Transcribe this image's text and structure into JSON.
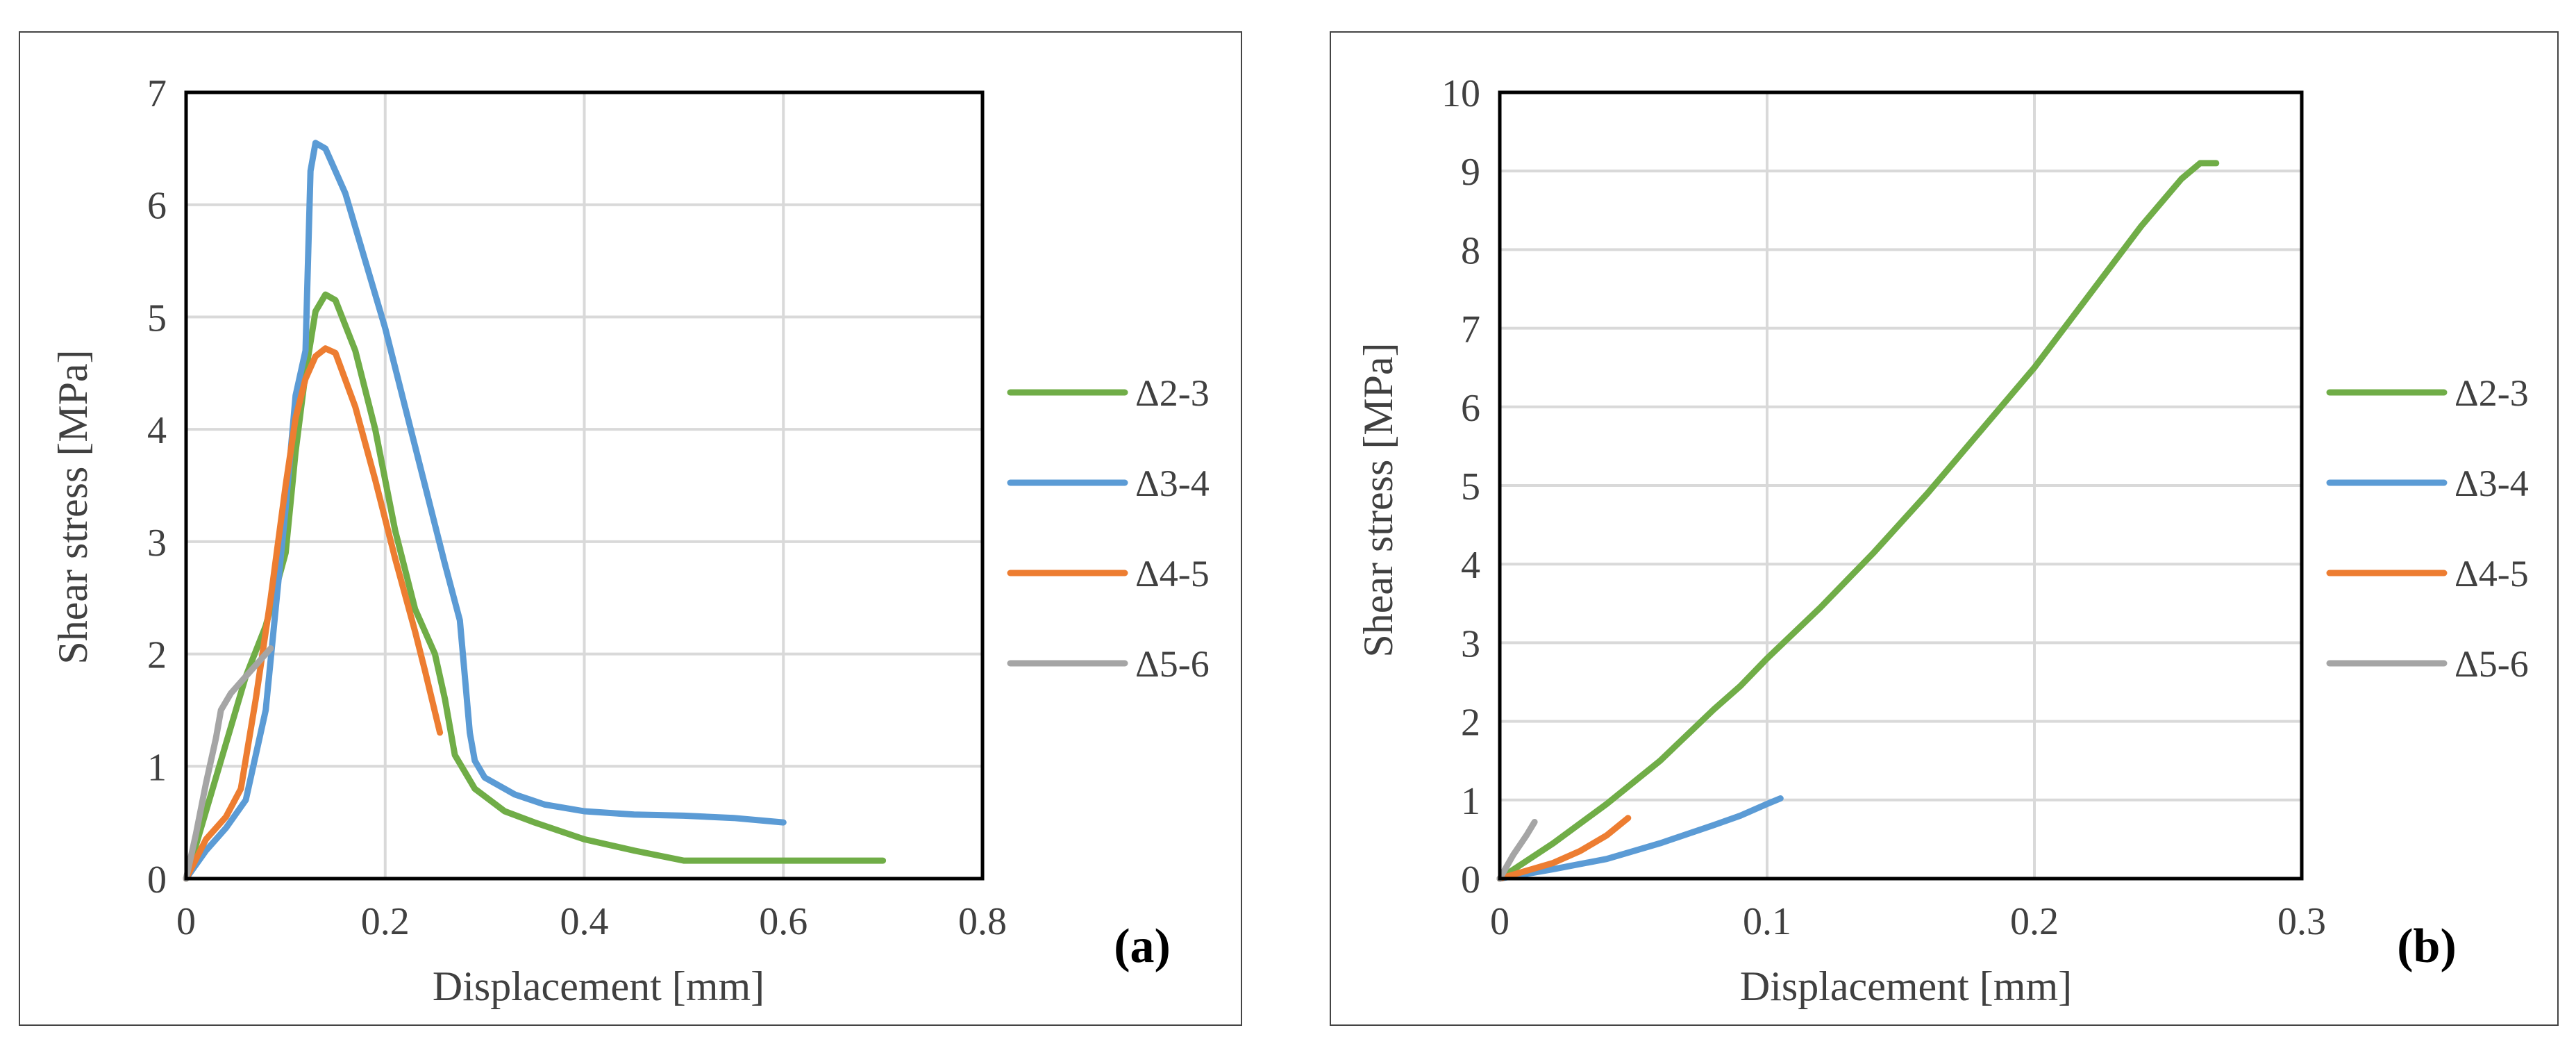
{
  "chart_data": [
    {
      "type": "line",
      "panel_label": "(a)",
      "xlabel": "Displacement [mm]",
      "ylabel": "Shear stress [MPa]",
      "xlim": [
        0,
        0.8
      ],
      "ylim": [
        0,
        7
      ],
      "xticks": [
        "0",
        "0.2",
        "0.4",
        "0.6",
        "0.8"
      ],
      "yticks": [
        "0",
        "1",
        "2",
        "3",
        "4",
        "5",
        "6",
        "7"
      ],
      "xtick_values": [
        0,
        0.2,
        0.4,
        0.6,
        0.8
      ],
      "ytick_values": [
        0,
        1,
        2,
        3,
        4,
        5,
        6,
        7
      ],
      "grid": true,
      "legend_position": "right",
      "series": [
        {
          "name": "Δ2-3",
          "color": "#70ad47",
          "points": [
            [
              0,
              0
            ],
            [
              0.03,
              0.9
            ],
            [
              0.06,
              1.8
            ],
            [
              0.08,
              2.25
            ],
            [
              0.1,
              2.9
            ],
            [
              0.11,
              3.8
            ],
            [
              0.12,
              4.5
            ],
            [
              0.13,
              5.05
            ],
            [
              0.14,
              5.2
            ],
            [
              0.15,
              5.15
            ],
            [
              0.17,
              4.7
            ],
            [
              0.19,
              4.0
            ],
            [
              0.21,
              3.1
            ],
            [
              0.23,
              2.4
            ],
            [
              0.25,
              2.0
            ],
            [
              0.26,
              1.6
            ],
            [
              0.27,
              1.1
            ],
            [
              0.29,
              0.8
            ],
            [
              0.32,
              0.6
            ],
            [
              0.35,
              0.5
            ],
            [
              0.4,
              0.35
            ],
            [
              0.45,
              0.25
            ],
            [
              0.5,
              0.16
            ],
            [
              0.6,
              0.16
            ],
            [
              0.7,
              0.16
            ]
          ]
        },
        {
          "name": "Δ3-4",
          "color": "#5b9bd5",
          "points": [
            [
              0,
              0
            ],
            [
              0.02,
              0.25
            ],
            [
              0.04,
              0.45
            ],
            [
              0.06,
              0.7
            ],
            [
              0.08,
              1.5
            ],
            [
              0.09,
              2.4
            ],
            [
              0.1,
              3.3
            ],
            [
              0.11,
              4.3
            ],
            [
              0.12,
              4.7
            ],
            [
              0.125,
              6.3
            ],
            [
              0.13,
              6.55
            ],
            [
              0.14,
              6.5
            ],
            [
              0.16,
              6.1
            ],
            [
              0.18,
              5.5
            ],
            [
              0.2,
              4.9
            ],
            [
              0.22,
              4.2
            ],
            [
              0.24,
              3.5
            ],
            [
              0.26,
              2.8
            ],
            [
              0.275,
              2.3
            ],
            [
              0.28,
              1.8
            ],
            [
              0.285,
              1.3
            ],
            [
              0.29,
              1.05
            ],
            [
              0.3,
              0.9
            ],
            [
              0.33,
              0.75
            ],
            [
              0.36,
              0.66
            ],
            [
              0.4,
              0.6
            ],
            [
              0.45,
              0.57
            ],
            [
              0.5,
              0.56
            ],
            [
              0.55,
              0.54
            ],
            [
              0.6,
              0.5
            ]
          ]
        },
        {
          "name": "Δ4-5",
          "color": "#ed7d31",
          "points": [
            [
              0,
              0
            ],
            [
              0.02,
              0.35
            ],
            [
              0.04,
              0.55
            ],
            [
              0.055,
              0.8
            ],
            [
              0.07,
              1.6
            ],
            [
              0.085,
              2.5
            ],
            [
              0.1,
              3.5
            ],
            [
              0.11,
              4.1
            ],
            [
              0.12,
              4.45
            ],
            [
              0.13,
              4.65
            ],
            [
              0.14,
              4.72
            ],
            [
              0.15,
              4.68
            ],
            [
              0.17,
              4.2
            ],
            [
              0.19,
              3.55
            ],
            [
              0.21,
              2.85
            ],
            [
              0.23,
              2.2
            ],
            [
              0.24,
              1.85
            ],
            [
              0.255,
              1.3
            ]
          ]
        },
        {
          "name": "Δ5-6",
          "color": "#a5a5a5",
          "points": [
            [
              0,
              0
            ],
            [
              0.01,
              0.4
            ],
            [
              0.02,
              0.85
            ],
            [
              0.03,
              1.25
            ],
            [
              0.035,
              1.5
            ],
            [
              0.045,
              1.65
            ],
            [
              0.06,
              1.8
            ],
            [
              0.075,
              1.95
            ],
            [
              0.085,
              2.05
            ]
          ]
        }
      ]
    },
    {
      "type": "line",
      "panel_label": "(b)",
      "xlabel": "Displacement [mm]",
      "ylabel": "Shear stress [MPa]",
      "xlim": [
        0,
        0.3
      ],
      "ylim": [
        0,
        10
      ],
      "xticks": [
        "0",
        "0.1",
        "0.2",
        "0.3"
      ],
      "yticks": [
        "0",
        "1",
        "2",
        "3",
        "4",
        "5",
        "6",
        "7",
        "8",
        "9",
        "10"
      ],
      "xtick_values": [
        0,
        0.1,
        0.2,
        0.3
      ],
      "ytick_values": [
        0,
        1,
        2,
        3,
        4,
        5,
        6,
        7,
        8,
        9,
        10
      ],
      "grid": true,
      "legend_position": "right",
      "series": [
        {
          "name": "Δ2-3",
          "color": "#70ad47",
          "points": [
            [
              0,
              0
            ],
            [
              0.02,
              0.45
            ],
            [
              0.04,
              0.95
            ],
            [
              0.06,
              1.5
            ],
            [
              0.08,
              2.15
            ],
            [
              0.09,
              2.45
            ],
            [
              0.1,
              2.8
            ],
            [
              0.12,
              3.45
            ],
            [
              0.14,
              4.15
            ],
            [
              0.16,
              4.9
            ],
            [
              0.18,
              5.7
            ],
            [
              0.2,
              6.5
            ],
            [
              0.22,
              7.4
            ],
            [
              0.24,
              8.3
            ],
            [
              0.255,
              8.9
            ],
            [
              0.262,
              9.1
            ],
            [
              0.268,
              9.1
            ]
          ]
        },
        {
          "name": "Δ3-4",
          "color": "#5b9bd5",
          "points": [
            [
              0,
              0
            ],
            [
              0.02,
              0.12
            ],
            [
              0.04,
              0.25
            ],
            [
              0.06,
              0.45
            ],
            [
              0.08,
              0.68
            ],
            [
              0.09,
              0.8
            ],
            [
              0.1,
              0.95
            ],
            [
              0.105,
              1.02
            ]
          ]
        },
        {
          "name": "Δ4-5",
          "color": "#ed7d31",
          "points": [
            [
              0,
              0
            ],
            [
              0.01,
              0.1
            ],
            [
              0.02,
              0.2
            ],
            [
              0.03,
              0.35
            ],
            [
              0.04,
              0.55
            ],
            [
              0.048,
              0.77
            ]
          ]
        },
        {
          "name": "Δ5-6",
          "color": "#a5a5a5",
          "points": [
            [
              0,
              0
            ],
            [
              0.005,
              0.3
            ],
            [
              0.01,
              0.55
            ],
            [
              0.013,
              0.72
            ]
          ]
        }
      ]
    }
  ]
}
